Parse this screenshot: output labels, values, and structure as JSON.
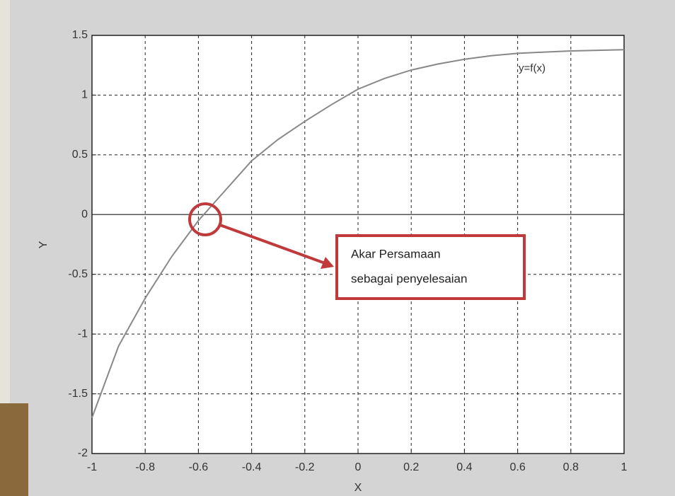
{
  "chart_data": {
    "type": "line",
    "x": [
      -1,
      -0.9,
      -0.8,
      -0.7,
      -0.6,
      -0.5,
      -0.4,
      -0.3,
      -0.2,
      -0.1,
      0,
      0.1,
      0.2,
      0.3,
      0.4,
      0.5,
      0.6,
      0.7,
      0.8,
      0.9,
      1
    ],
    "series": [
      {
        "name": "y=f(x)",
        "color": "#888888",
        "values": [
          -1.7,
          -1.1,
          -0.7,
          -0.35,
          -0.05,
          0.2,
          0.45,
          0.63,
          0.78,
          0.92,
          1.05,
          1.14,
          1.21,
          1.26,
          1.3,
          1.33,
          1.35,
          1.36,
          1.37,
          1.375,
          1.38
        ]
      }
    ],
    "xlabel": "X",
    "ylabel": "Y",
    "xlim": [
      -1,
      1
    ],
    "ylim": [
      -2,
      1.5
    ],
    "xticks": [
      -1,
      -0.8,
      -0.6,
      -0.4,
      -0.2,
      0,
      0.2,
      0.4,
      0.6,
      0.8,
      1
    ],
    "yticks": [
      -2,
      -1.5,
      -1,
      -0.5,
      0,
      0.5,
      1,
      1.5
    ],
    "grid": true,
    "annotations": [
      "Akar Persamaan",
      "sebagai penyelesaian"
    ],
    "annotation_color": "#c0393b"
  }
}
